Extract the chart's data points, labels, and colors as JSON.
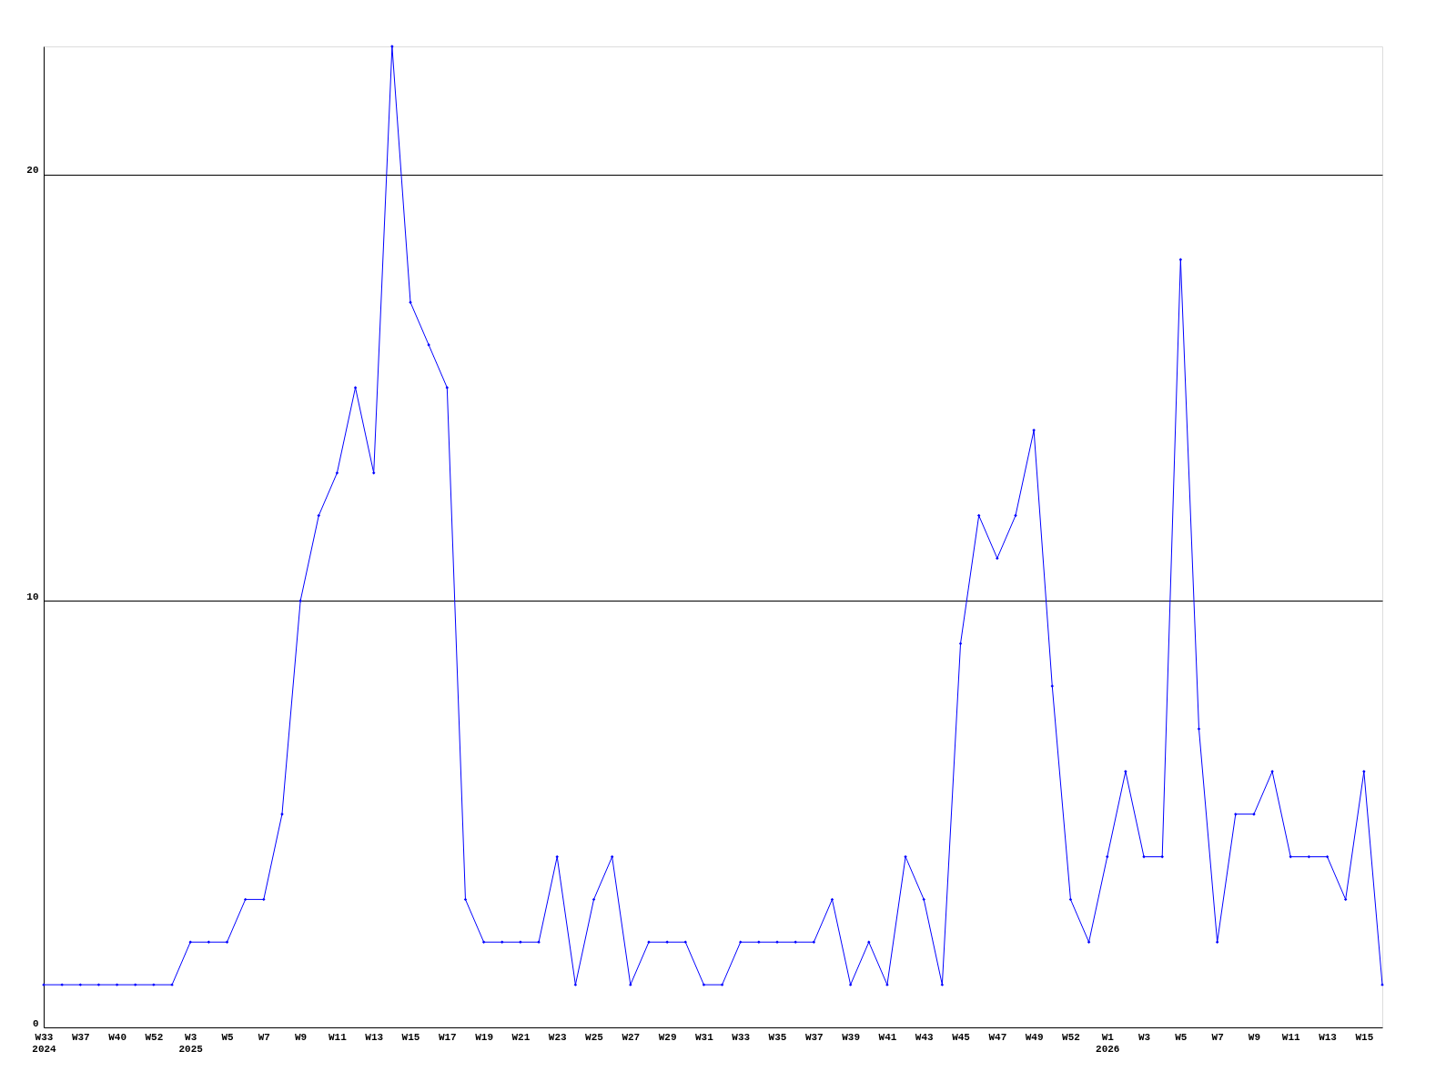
{
  "chart_data": {
    "type": "line",
    "categories": [
      "W33\n2024",
      null,
      "W37",
      null,
      "W40",
      null,
      "W52",
      null,
      "W3\n2025",
      null,
      "W5",
      null,
      "W7",
      null,
      "W9",
      null,
      "W11",
      null,
      "W13",
      null,
      "W15",
      null,
      "W17",
      null,
      "W19",
      null,
      "W21",
      null,
      "W23",
      null,
      "W25",
      null,
      "W27",
      null,
      "W29",
      null,
      "W31",
      null,
      "W33",
      null,
      "W35",
      null,
      "W37",
      null,
      "W39",
      null,
      "W41",
      null,
      "W43",
      null,
      "W45",
      null,
      "W47",
      null,
      "W49",
      null,
      "W52",
      null,
      "W1\n2026",
      null,
      "W3",
      null,
      "W5",
      null,
      "W7",
      null,
      "W9",
      null,
      "W11",
      null,
      "W13",
      null,
      "W15",
      null
    ],
    "series": [
      {
        "color": "#0000ff",
        "values": [
          1,
          1,
          1,
          1,
          1,
          1,
          1,
          1,
          2,
          2,
          2,
          3,
          3,
          5,
          10,
          12,
          13,
          15,
          13,
          23,
          17,
          16,
          15,
          3,
          2,
          2,
          2,
          2,
          4,
          1,
          3,
          4,
          1,
          2,
          2,
          2,
          1,
          1,
          2,
          2,
          2,
          2,
          2,
          3,
          1,
          2,
          1,
          4,
          3,
          1,
          9,
          12,
          11,
          12,
          14,
          8,
          3,
          2,
          4,
          6,
          4,
          4,
          18,
          7,
          2,
          5,
          5,
          6,
          4,
          4,
          4,
          3,
          6,
          1
        ]
      }
    ],
    "ylim": [
      0,
      23
    ],
    "yticks": [
      0,
      10,
      20
    ],
    "grid": "y",
    "marker": "diamond",
    "line_style": "solid"
  }
}
